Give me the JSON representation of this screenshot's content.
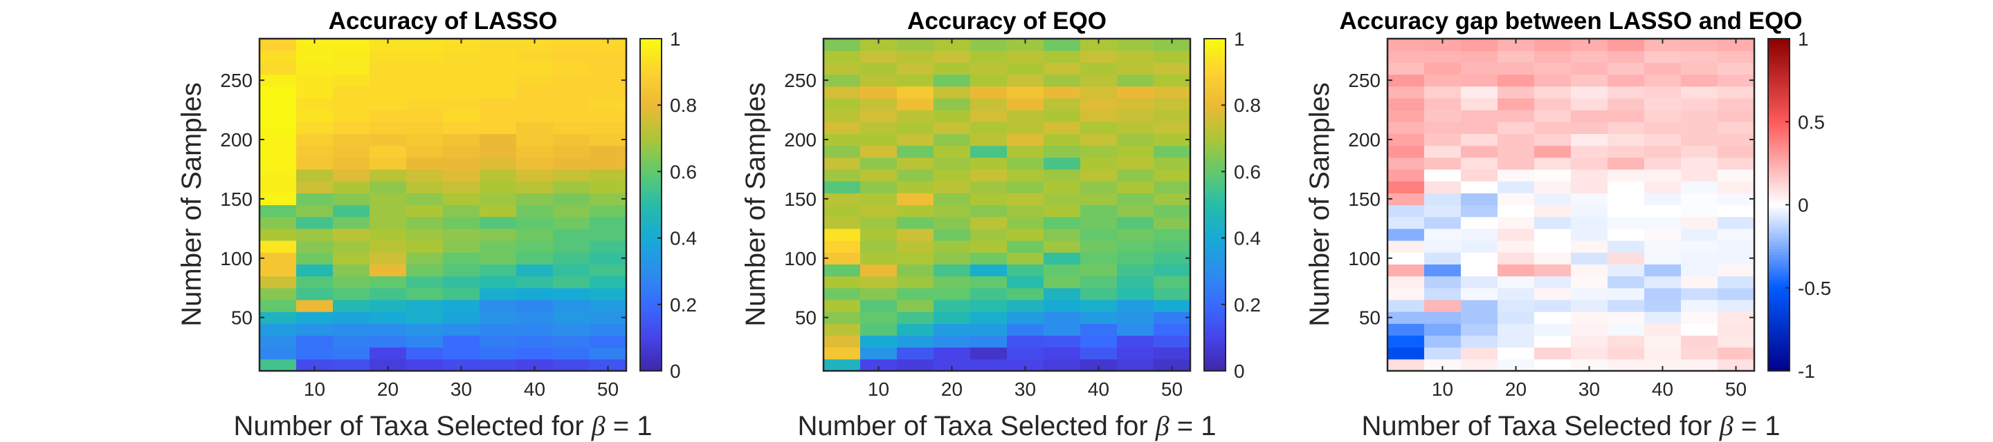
{
  "chart_data": [
    {
      "type": "heatmap",
      "title": "Accuracy of LASSO",
      "xlabel_prefix": "Number of Taxa Selected for ",
      "xlabel_symbol": "β",
      "xlabel_suffix": " = 1",
      "ylabel": "Number of Samples",
      "xlim": [
        2.5,
        52.5
      ],
      "ylim": [
        5,
        285
      ],
      "n_cols": 10,
      "n_rows": 28,
      "x_ticks": [
        10,
        20,
        30,
        40,
        50
      ],
      "y_ticks": [
        50,
        100,
        150,
        200,
        250
      ],
      "colormap": "parula",
      "clim": [
        0,
        1
      ],
      "colorbar_ticks": [
        "0",
        "0.2",
        "0.4",
        "0.6",
        "0.8",
        "1"
      ],
      "colorbar_tick_values": [
        0,
        0.2,
        0.4,
        0.6,
        0.8,
        1
      ],
      "values": [
        [
          0.55,
          0.12,
          0.13,
          0.08,
          0.1,
          0.12,
          0.12,
          0.1,
          0.12,
          0.14
        ],
        [
          0.28,
          0.22,
          0.24,
          0.1,
          0.18,
          0.2,
          0.22,
          0.2,
          0.22,
          0.26
        ],
        [
          0.3,
          0.22,
          0.26,
          0.25,
          0.28,
          0.2,
          0.25,
          0.24,
          0.25,
          0.22
        ],
        [
          0.35,
          0.32,
          0.3,
          0.3,
          0.32,
          0.3,
          0.28,
          0.28,
          0.3,
          0.28
        ],
        [
          0.45,
          0.4,
          0.38,
          0.4,
          0.42,
          0.38,
          0.32,
          0.3,
          0.34,
          0.32
        ],
        [
          0.6,
          0.8,
          0.48,
          0.45,
          0.42,
          0.4,
          0.3,
          0.28,
          0.32,
          0.35
        ],
        [
          0.65,
          0.55,
          0.58,
          0.55,
          0.58,
          0.55,
          0.42,
          0.4,
          0.4,
          0.42
        ],
        [
          0.75,
          0.58,
          0.62,
          0.6,
          0.55,
          0.52,
          0.5,
          0.52,
          0.55,
          0.5
        ],
        [
          0.85,
          0.48,
          0.65,
          0.8,
          0.62,
          0.58,
          0.55,
          0.45,
          0.52,
          0.55
        ],
        [
          0.85,
          0.62,
          0.7,
          0.75,
          0.65,
          0.6,
          0.62,
          0.58,
          0.55,
          0.52
        ],
        [
          0.95,
          0.65,
          0.68,
          0.72,
          0.7,
          0.65,
          0.62,
          0.6,
          0.58,
          0.55
        ],
        [
          0.7,
          0.68,
          0.72,
          0.7,
          0.68,
          0.66,
          0.65,
          0.62,
          0.58,
          0.58
        ],
        [
          0.65,
          0.55,
          0.62,
          0.68,
          0.65,
          0.62,
          0.58,
          0.6,
          0.62,
          0.58
        ],
        [
          0.6,
          0.65,
          0.55,
          0.68,
          0.7,
          0.65,
          0.7,
          0.62,
          0.65,
          0.62
        ],
        [
          0.98,
          0.62,
          0.65,
          0.68,
          0.66,
          0.7,
          0.68,
          0.65,
          0.63,
          0.66
        ],
        [
          0.97,
          0.75,
          0.7,
          0.66,
          0.72,
          0.74,
          0.7,
          0.72,
          0.68,
          0.7
        ],
        [
          0.97,
          0.72,
          0.78,
          0.72,
          0.75,
          0.78,
          0.72,
          0.76,
          0.74,
          0.72
        ],
        [
          0.98,
          0.85,
          0.82,
          0.86,
          0.8,
          0.8,
          0.78,
          0.82,
          0.8,
          0.8
        ],
        [
          0.98,
          0.86,
          0.84,
          0.88,
          0.84,
          0.82,
          0.8,
          0.84,
          0.82,
          0.8
        ],
        [
          0.98,
          0.88,
          0.85,
          0.84,
          0.86,
          0.84,
          0.8,
          0.86,
          0.84,
          0.86
        ],
        [
          0.99,
          0.92,
          0.9,
          0.88,
          0.88,
          0.9,
          0.9,
          0.86,
          0.88,
          0.88
        ],
        [
          0.99,
          0.94,
          0.92,
          0.9,
          0.9,
          0.92,
          0.9,
          0.9,
          0.9,
          0.9
        ],
        [
          0.99,
          0.93,
          0.92,
          0.92,
          0.91,
          0.91,
          0.9,
          0.9,
          0.9,
          0.91
        ],
        [
          0.99,
          0.95,
          0.92,
          0.92,
          0.92,
          0.92,
          0.92,
          0.9,
          0.9,
          0.9
        ],
        [
          0.97,
          0.95,
          0.94,
          0.92,
          0.92,
          0.92,
          0.92,
          0.91,
          0.9,
          0.9
        ],
        [
          0.92,
          0.96,
          0.96,
          0.92,
          0.92,
          0.92,
          0.92,
          0.92,
          0.91,
          0.9
        ],
        [
          0.93,
          0.97,
          0.96,
          0.93,
          0.93,
          0.92,
          0.92,
          0.91,
          0.9,
          0.9
        ],
        [
          0.9,
          0.97,
          0.97,
          0.94,
          0.94,
          0.93,
          0.92,
          0.92,
          0.91,
          0.91
        ]
      ]
    },
    {
      "type": "heatmap",
      "title": "Accuracy of EQO",
      "xlabel_prefix": "Number of Taxa Selected for ",
      "xlabel_symbol": "β",
      "xlabel_suffix": " = 1",
      "ylabel": "Number of Samples",
      "xlim": [
        2.5,
        52.5
      ],
      "ylim": [
        5,
        285
      ],
      "n_cols": 10,
      "n_rows": 28,
      "x_ticks": [
        10,
        20,
        30,
        40,
        50
      ],
      "y_ticks": [
        50,
        100,
        150,
        200,
        250
      ],
      "colormap": "parula",
      "clim": [
        0,
        1
      ],
      "colorbar_ticks": [
        "0",
        "0.2",
        "0.4",
        "0.6",
        "0.8",
        "1"
      ],
      "colorbar_tick_values": [
        0,
        0.2,
        0.4,
        0.6,
        0.8,
        1
      ],
      "values": [
        [
          0.45,
          0.1,
          0.08,
          0.1,
          0.1,
          0.1,
          0.08,
          0.06,
          0.08,
          0.05
        ],
        [
          0.85,
          0.32,
          0.15,
          0.1,
          0.05,
          0.12,
          0.1,
          0.15,
          0.1,
          0.08
        ],
        [
          0.78,
          0.4,
          0.35,
          0.3,
          0.28,
          0.14,
          0.15,
          0.2,
          0.12,
          0.15
        ],
        [
          0.72,
          0.58,
          0.45,
          0.35,
          0.35,
          0.26,
          0.3,
          0.22,
          0.3,
          0.2
        ],
        [
          0.65,
          0.6,
          0.55,
          0.48,
          0.42,
          0.35,
          0.3,
          0.35,
          0.32,
          0.25
        ],
        [
          0.7,
          0.58,
          0.65,
          0.52,
          0.5,
          0.45,
          0.4,
          0.42,
          0.35,
          0.4
        ],
        [
          0.62,
          0.65,
          0.6,
          0.6,
          0.55,
          0.58,
          0.45,
          0.55,
          0.5,
          0.55
        ],
        [
          0.7,
          0.72,
          0.68,
          0.62,
          0.6,
          0.5,
          0.62,
          0.58,
          0.52,
          0.58
        ],
        [
          0.6,
          0.8,
          0.65,
          0.55,
          0.42,
          0.55,
          0.6,
          0.62,
          0.55,
          0.52
        ],
        [
          0.85,
          0.7,
          0.7,
          0.66,
          0.62,
          0.68,
          0.52,
          0.6,
          0.58,
          0.55
        ],
        [
          0.9,
          0.68,
          0.72,
          0.68,
          0.7,
          0.62,
          0.68,
          0.62,
          0.6,
          0.58
        ],
        [
          0.94,
          0.7,
          0.75,
          0.62,
          0.68,
          0.7,
          0.65,
          0.6,
          0.62,
          0.6
        ],
        [
          0.72,
          0.68,
          0.62,
          0.65,
          0.72,
          0.66,
          0.6,
          0.62,
          0.58,
          0.65
        ],
        [
          0.7,
          0.72,
          0.7,
          0.68,
          0.65,
          0.68,
          0.7,
          0.62,
          0.66,
          0.62
        ],
        [
          0.72,
          0.7,
          0.82,
          0.66,
          0.7,
          0.72,
          0.68,
          0.68,
          0.64,
          0.68
        ],
        [
          0.58,
          0.66,
          0.7,
          0.72,
          0.68,
          0.66,
          0.7,
          0.66,
          0.7,
          0.65
        ],
        [
          0.68,
          0.72,
          0.66,
          0.7,
          0.74,
          0.7,
          0.68,
          0.72,
          0.66,
          0.7
        ],
        [
          0.74,
          0.66,
          0.72,
          0.68,
          0.7,
          0.66,
          0.56,
          0.7,
          0.72,
          0.68
        ],
        [
          0.66,
          0.76,
          0.62,
          0.7,
          0.56,
          0.7,
          0.66,
          0.68,
          0.7,
          0.62
        ],
        [
          0.7,
          0.7,
          0.74,
          0.66,
          0.72,
          0.78,
          0.7,
          0.74,
          0.68,
          0.7
        ],
        [
          0.76,
          0.72,
          0.7,
          0.74,
          0.7,
          0.72,
          0.76,
          0.7,
          0.72,
          0.74
        ],
        [
          0.72,
          0.76,
          0.72,
          0.7,
          0.76,
          0.72,
          0.7,
          0.76,
          0.74,
          0.72
        ],
        [
          0.7,
          0.74,
          0.82,
          0.66,
          0.74,
          0.8,
          0.72,
          0.78,
          0.76,
          0.74
        ],
        [
          0.76,
          0.8,
          0.86,
          0.74,
          0.8,
          0.84,
          0.8,
          0.76,
          0.8,
          0.78
        ],
        [
          0.66,
          0.72,
          0.7,
          0.62,
          0.7,
          0.74,
          0.68,
          0.72,
          0.66,
          0.7
        ],
        [
          0.72,
          0.7,
          0.74,
          0.7,
          0.72,
          0.7,
          0.74,
          0.7,
          0.72,
          0.74
        ],
        [
          0.7,
          0.74,
          0.72,
          0.74,
          0.7,
          0.72,
          0.7,
          0.74,
          0.72,
          0.7
        ],
        [
          0.64,
          0.7,
          0.68,
          0.7,
          0.66,
          0.68,
          0.62,
          0.7,
          0.68,
          0.66
        ]
      ]
    },
    {
      "type": "heatmap",
      "title": "Accuracy gap between LASSO and EQO",
      "xlabel_prefix": "Number of Taxa Selected for ",
      "xlabel_symbol": "β",
      "xlabel_suffix": " = 1",
      "ylabel": "Number of Samples",
      "xlim": [
        2.5,
        52.5
      ],
      "ylim": [
        5,
        285
      ],
      "n_cols": 10,
      "n_rows": 28,
      "x_ticks": [
        10,
        20,
        30,
        40,
        50
      ],
      "y_ticks": [
        50,
        100,
        150,
        200,
        250
      ],
      "colormap": "blue-white-red",
      "clim": [
        -1,
        1
      ],
      "colorbar_ticks": [
        "-1",
        "-0.5",
        "0",
        "0.5",
        "1"
      ],
      "colorbar_tick_values": [
        -1,
        -0.5,
        0,
        0.5,
        1
      ],
      "values": [
        [
          0.1,
          0.02,
          0.05,
          -0.02,
          0.0,
          0.02,
          0.04,
          0.04,
          0.04,
          0.09
        ],
        [
          -0.57,
          -0.1,
          0.09,
          0.0,
          0.13,
          0.08,
          0.12,
          0.05,
          0.12,
          0.18
        ],
        [
          -0.48,
          -0.18,
          -0.09,
          -0.05,
          0.0,
          0.06,
          0.1,
          0.04,
          0.13,
          0.07
        ],
        [
          -0.37,
          -0.26,
          -0.15,
          -0.05,
          -0.03,
          0.04,
          -0.02,
          0.06,
          0.0,
          0.08
        ],
        [
          -0.2,
          -0.2,
          -0.17,
          -0.08,
          0.0,
          0.03,
          0.02,
          -0.05,
          0.02,
          0.07
        ],
        [
          -0.1,
          0.22,
          -0.17,
          -0.07,
          -0.08,
          -0.05,
          -0.1,
          -0.14,
          -0.03,
          -0.05
        ],
        [
          0.03,
          -0.1,
          -0.02,
          -0.05,
          0.03,
          -0.03,
          -0.03,
          -0.15,
          -0.1,
          -0.13
        ],
        [
          0.05,
          -0.14,
          -0.06,
          -0.02,
          -0.05,
          0.02,
          -0.12,
          -0.06,
          0.03,
          -0.08
        ],
        [
          0.25,
          -0.32,
          0.0,
          0.25,
          0.2,
          0.03,
          -0.05,
          -0.17,
          -0.03,
          0.03
        ],
        [
          0.0,
          -0.08,
          0.0,
          0.09,
          0.03,
          -0.08,
          0.1,
          -0.02,
          -0.03,
          -0.03
        ],
        [
          0.05,
          -0.03,
          -0.04,
          0.04,
          0.0,
          0.03,
          -0.06,
          -0.02,
          -0.02,
          -0.03
        ],
        [
          -0.24,
          -0.02,
          -0.03,
          0.08,
          0.0,
          -0.04,
          0.0,
          0.02,
          -0.04,
          -0.02
        ],
        [
          -0.07,
          -0.13,
          0.0,
          0.03,
          -0.07,
          -0.04,
          -0.02,
          -0.02,
          0.04,
          -0.07
        ],
        [
          -0.1,
          -0.07,
          -0.15,
          0.0,
          0.05,
          -0.03,
          0.0,
          0.0,
          -0.01,
          0.0
        ],
        [
          0.26,
          -0.08,
          -0.17,
          0.02,
          -0.04,
          -0.02,
          0.0,
          -0.03,
          -0.01,
          -0.02
        ],
        [
          0.39,
          0.09,
          0.0,
          -0.06,
          0.04,
          0.08,
          0.0,
          0.06,
          -0.02,
          0.05
        ],
        [
          0.29,
          0.0,
          0.12,
          0.02,
          0.01,
          0.08,
          0.04,
          0.04,
          0.08,
          0.02
        ],
        [
          0.24,
          0.19,
          0.1,
          0.18,
          0.1,
          0.14,
          0.22,
          0.12,
          0.08,
          0.12
        ],
        [
          0.32,
          0.1,
          0.22,
          0.18,
          0.28,
          0.12,
          0.14,
          0.16,
          0.12,
          0.18
        ],
        [
          0.28,
          0.18,
          0.11,
          0.18,
          0.14,
          0.06,
          0.1,
          0.12,
          0.16,
          0.16
        ],
        [
          0.23,
          0.2,
          0.2,
          0.14,
          0.18,
          0.18,
          0.14,
          0.16,
          0.16,
          0.14
        ],
        [
          0.27,
          0.18,
          0.2,
          0.2,
          0.14,
          0.2,
          0.2,
          0.14,
          0.16,
          0.18
        ],
        [
          0.29,
          0.19,
          0.1,
          0.26,
          0.17,
          0.11,
          0.18,
          0.12,
          0.14,
          0.17
        ],
        [
          0.23,
          0.15,
          0.06,
          0.18,
          0.12,
          0.08,
          0.12,
          0.14,
          0.1,
          0.12
        ],
        [
          0.31,
          0.23,
          0.24,
          0.3,
          0.22,
          0.18,
          0.24,
          0.19,
          0.24,
          0.2
        ],
        [
          0.2,
          0.26,
          0.22,
          0.22,
          0.2,
          0.22,
          0.18,
          0.22,
          0.19,
          0.16
        ],
        [
          0.23,
          0.23,
          0.24,
          0.19,
          0.23,
          0.2,
          0.22,
          0.17,
          0.18,
          0.2
        ],
        [
          0.26,
          0.27,
          0.29,
          0.24,
          0.28,
          0.25,
          0.3,
          0.22,
          0.23,
          0.25
        ]
      ]
    }
  ]
}
